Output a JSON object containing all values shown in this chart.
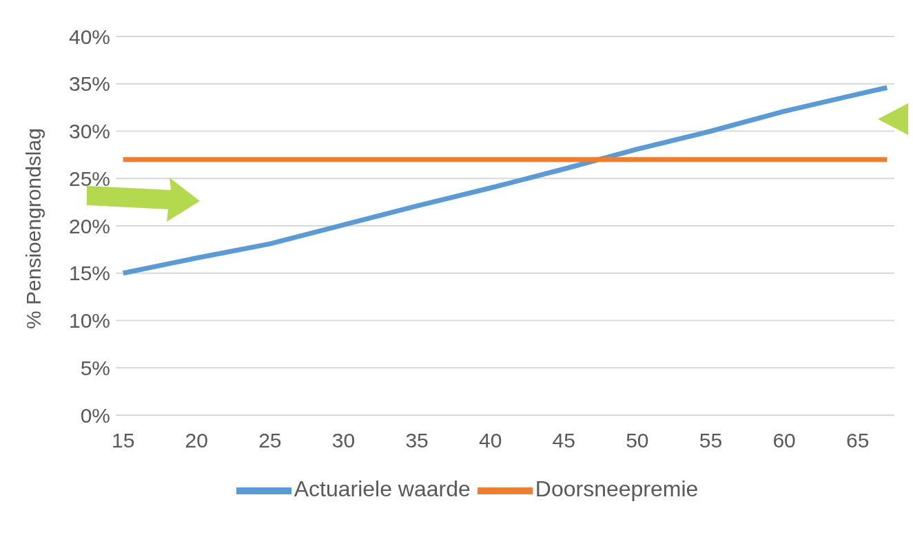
{
  "chart_data": {
    "type": "line",
    "ylabel": "% Pensioengrondslag",
    "xlim": [
      14.5,
      67.5
    ],
    "xticks": [
      15,
      20,
      25,
      30,
      35,
      40,
      45,
      50,
      55,
      60,
      65
    ],
    "ylim": [
      0,
      40
    ],
    "yticks": [
      {
        "value": 0,
        "label": "0%"
      },
      {
        "value": 5,
        "label": "5%"
      },
      {
        "value": 10,
        "label": "10%"
      },
      {
        "value": 15,
        "label": "15%"
      },
      {
        "value": 20,
        "label": "20%"
      },
      {
        "value": 25,
        "label": "25%"
      },
      {
        "value": 30,
        "label": "30%"
      },
      {
        "value": 35,
        "label": "35%"
      },
      {
        "value": 40,
        "label": "40%"
      }
    ],
    "grid": "y",
    "legend": "bottom",
    "marker": "none",
    "line_style": "solid",
    "series": [
      {
        "name": "Actuariele waarde",
        "color": "#5b9bd5",
        "x": [
          15,
          20,
          25,
          30,
          35,
          40,
          45,
          50,
          55,
          60,
          65,
          67
        ],
        "values": [
          15,
          16.6,
          18.1,
          20.1,
          22.1,
          24,
          26,
          28.1,
          30,
          32.1,
          33.9,
          34.6
        ]
      },
      {
        "name": "Doorsneepremie",
        "color": "#ed7d31",
        "x": [
          15,
          67
        ],
        "values": [
          27,
          27
        ]
      }
    ]
  }
}
